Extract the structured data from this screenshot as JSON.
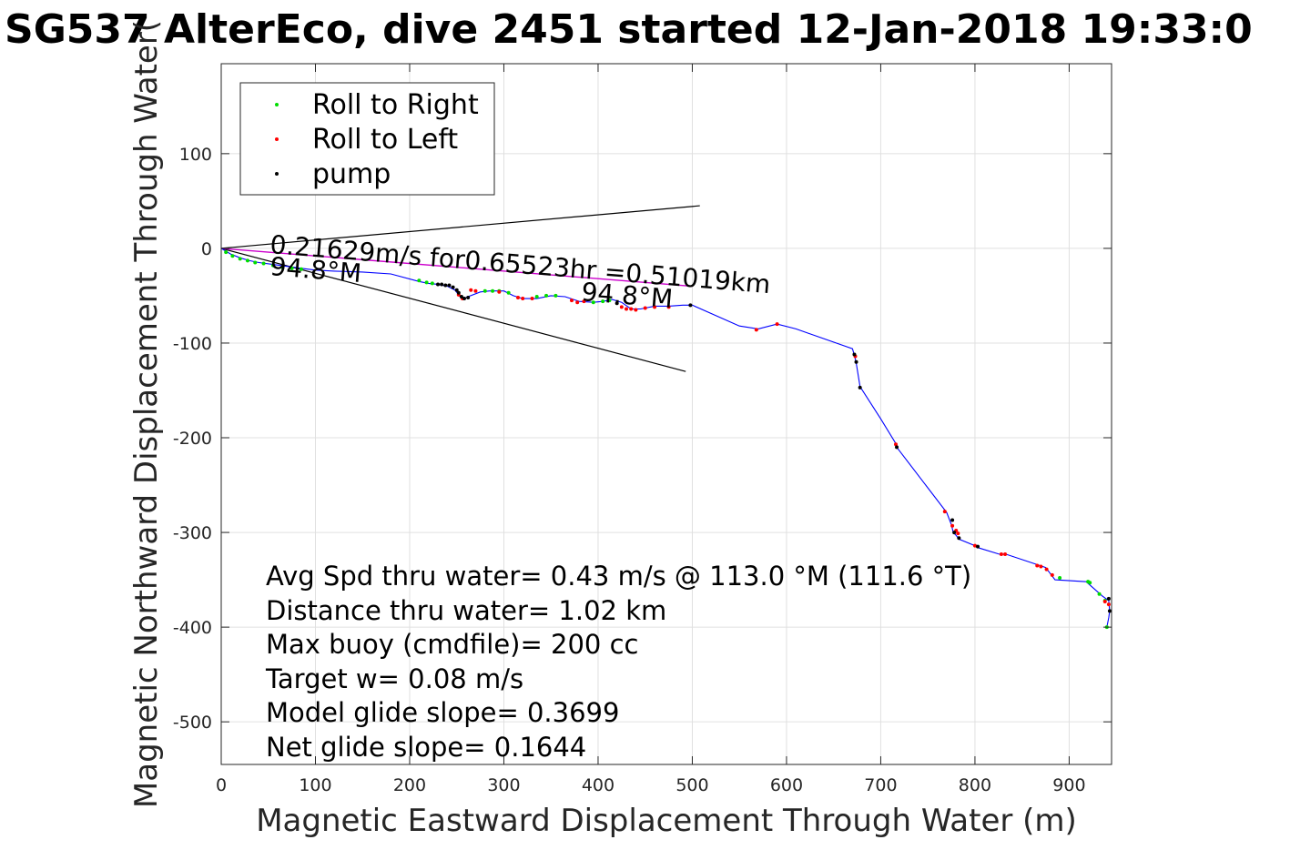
{
  "chart_data": {
    "type": "line",
    "title": "SG537 AlterEco, dive 2451 started 12-Jan-2018 19:33:0",
    "xlabel": "Magnetic Eastward Displacement Through Water (m)",
    "ylabel": "Magnetic Northward Displacement Through Water(",
    "xlim": [
      0,
      945
    ],
    "ylim": [
      -545,
      195
    ],
    "xticks": [
      "0",
      "100",
      "200",
      "300",
      "400",
      "500",
      "600",
      "700",
      "800",
      "900"
    ],
    "yticks": [
      "100",
      "0",
      "-100",
      "-200",
      "-300",
      "-400",
      "-500"
    ],
    "grid": true,
    "legend_position": "top-left",
    "legend": [
      {
        "name": "Roll to Right",
        "color": "#00dd00"
      },
      {
        "name": "Roll to Left",
        "color": "#ff0000"
      },
      {
        "name": "pump",
        "color": "#000000"
      }
    ],
    "colors": {
      "track": "#0000ff",
      "current": "#cc00cc",
      "cone": "#000000"
    },
    "track": {
      "name": "",
      "x": [
        0,
        10,
        20,
        30,
        40,
        55,
        70,
        85,
        100,
        120,
        150,
        180,
        210,
        220,
        230,
        240,
        248,
        252,
        255,
        258,
        262,
        275,
        285,
        300,
        310,
        320,
        335,
        350,
        365,
        380,
        395,
        405,
        415,
        425,
        435,
        445,
        460,
        475,
        490,
        500,
        550,
        570,
        590,
        610,
        670,
        672,
        674,
        678,
        700,
        716,
        717,
        770,
        775,
        777,
        780,
        783,
        800,
        803,
        826,
        833,
        866,
        875,
        885,
        918,
        935,
        942,
        943,
        942,
        940
      ],
      "y": [
        0,
        -6,
        -10,
        -13,
        -15,
        -17,
        -19,
        -21,
        -23,
        -24,
        -25,
        -27,
        -35,
        -37,
        -38,
        -40,
        -44,
        -49,
        -53,
        -53,
        -51,
        -46,
        -45,
        -45,
        -50,
        -53,
        -53,
        -50,
        -51,
        -56,
        -57,
        -56,
        -54,
        -57,
        -64,
        -64,
        -61,
        -61,
        -60,
        -60,
        -82,
        -85,
        -80,
        -85,
        -106,
        -113,
        -121,
        -146,
        -180,
        -206,
        -210,
        -279,
        -292,
        -300,
        -303,
        -307,
        -314,
        -316,
        -323,
        -323,
        -334,
        -337,
        -350,
        -352,
        -367,
        -372,
        -383,
        -390,
        -400
      ]
    },
    "roll_right": {
      "x": [
        5,
        12,
        20,
        28,
        36,
        45,
        55,
        65,
        75,
        85,
        210,
        218,
        224,
        280,
        288,
        295,
        305,
        335,
        345,
        355,
        395,
        405,
        412,
        890,
        920,
        922,
        932,
        938,
        940
      ],
      "y": [
        -4,
        -8,
        -11,
        -13,
        -15,
        -16,
        -18,
        -20,
        -21,
        -22,
        -34,
        -36,
        -37,
        -45,
        -45,
        -45,
        -47,
        -51,
        -50,
        -50,
        -57,
        -56,
        -55,
        -348,
        -352,
        -353,
        -365,
        -372,
        -400
      ]
    },
    "roll_left": {
      "x": [
        252,
        256,
        265,
        270,
        295,
        315,
        320,
        330,
        372,
        378,
        385,
        425,
        430,
        435,
        440,
        450,
        460,
        475,
        568,
        590,
        673,
        716,
        768,
        776,
        780,
        782,
        800,
        828,
        832,
        866,
        870,
        876,
        882,
        938,
        942
      ],
      "y": [
        -49,
        -53,
        -44,
        -45,
        -46,
        -52,
        -53,
        -53,
        -55,
        -57,
        -56,
        -62,
        -64,
        -64,
        -65,
        -63,
        -62,
        -62,
        -86,
        -80,
        -114,
        -207,
        -278,
        -293,
        -298,
        -301,
        -314,
        -323,
        -323,
        -335,
        -336,
        -339,
        -345,
        -373,
        -376
      ]
    },
    "pump": {
      "x": [
        230,
        234,
        238,
        242,
        246,
        250,
        252,
        255,
        258,
        262,
        420,
        498,
        672,
        674,
        678,
        717,
        776,
        778,
        783,
        803,
        942,
        943
      ],
      "y": [
        -38,
        -38,
        -39,
        -39,
        -41,
        -44,
        -47,
        -51,
        -53,
        -52,
        -58,
        -60,
        -112,
        -120,
        -147,
        -210,
        -287,
        -300,
        -306,
        -315,
        -370,
        -383
      ]
    },
    "current_line": {
      "x": [
        0,
        500
      ],
      "y": [
        0,
        -40
      ]
    },
    "cone": {
      "upper": {
        "x": [
          0,
          508
        ],
        "y": [
          0,
          45
        ]
      },
      "lower": {
        "x": [
          0,
          493
        ],
        "y": [
          0,
          -130
        ]
      }
    },
    "annotations": {
      "current_speed": "0.21629m/s for0.65523hr =0.51019km",
      "heading_start": "94.8°M",
      "heading_end": "94.8°M"
    },
    "stats": [
      "Avg Spd thru water=  0.43 m/s @ 113.0 °M (111.6 °T)",
      "Distance thru water=  1.02 km",
      "Max buoy (cmdfile)= 200 cc",
      "Target w= 0.08 m/s",
      "Model glide slope= 0.3699",
      "Net glide slope= 0.1644"
    ]
  }
}
